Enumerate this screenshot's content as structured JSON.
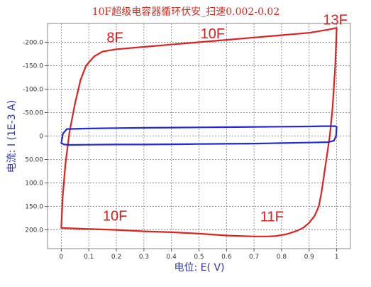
{
  "chart_data": {
    "type": "line",
    "title": "10F超级电容器循环伏安_扫速0.002-0.02",
    "xlabel": "电位: E( V)",
    "ylabel": "电流: I (1E-3 A)",
    "xlim": [
      -0.05,
      1.05
    ],
    "ylim": [
      -240,
      240
    ],
    "y_inverted": true,
    "grid": true,
    "x_ticks": [
      0,
      0.1,
      0.2,
      0.3,
      0.4,
      0.5,
      0.6,
      0.7,
      0.8,
      0.9,
      1
    ],
    "x_tick_labels": [
      "0",
      "0.1",
      "0.2",
      "0.3",
      "0.4",
      "0.5",
      "0.6",
      "0.7",
      "0.8",
      "0.9",
      "1"
    ],
    "y_ticks": [
      -200,
      -150,
      -100,
      -50,
      0,
      50,
      100,
      150,
      200
    ],
    "y_tick_labels": [
      "-200.0",
      "-150.0",
      "-100.0",
      "-50.00",
      "0",
      "50.00",
      "100.0",
      "150.0",
      "200.0"
    ],
    "series": [
      {
        "color": "#dd2222",
        "x": [
          0.0,
          0.005,
          0.015,
          0.03,
          0.05,
          0.07,
          0.09,
          0.12,
          0.15,
          0.2,
          0.3,
          0.4,
          0.5,
          0.6,
          0.7,
          0.8,
          0.9,
          0.95,
          0.98,
          0.995,
          1.0,
          0.995,
          0.985,
          0.975,
          0.965,
          0.955,
          0.945,
          0.935,
          0.92,
          0.9,
          0.88,
          0.86,
          0.84,
          0.82,
          0.8,
          0.78,
          0.75,
          0.72,
          0.7,
          0.6,
          0.5,
          0.4,
          0.3,
          0.2,
          0.1,
          0.05,
          0.0
        ],
        "y": [
          195,
          130,
          60,
          -10,
          -70,
          -120,
          -150,
          -170,
          -180,
          -185,
          -190,
          -195,
          -200,
          -205,
          -210,
          -215,
          -220,
          -225,
          -228,
          -230,
          -230,
          -150,
          -60,
          0,
          40,
          80,
          120,
          150,
          170,
          185,
          195,
          201,
          205,
          209,
          211,
          213,
          214,
          214,
          214,
          212,
          208,
          205,
          203,
          200,
          198,
          197,
          196
        ]
      },
      {
        "color": "#1f2ad4",
        "x": [
          0.0,
          0.002,
          0.006,
          0.02,
          0.1,
          0.2,
          0.3,
          0.4,
          0.5,
          0.6,
          0.7,
          0.8,
          0.9,
          0.95,
          0.98,
          0.995,
          1.0,
          0.998,
          0.99,
          0.97,
          0.9,
          0.8,
          0.7,
          0.6,
          0.5,
          0.4,
          0.3,
          0.2,
          0.1,
          0.03,
          0.01,
          0.0
        ],
        "y": [
          15,
          8,
          -5,
          -15,
          -16,
          -17,
          -17.5,
          -18,
          -18.5,
          -19,
          -19.5,
          -20,
          -20.5,
          -21,
          -21,
          -21,
          -20,
          0,
          10,
          13,
          14,
          15,
          16,
          16.5,
          17,
          17.5,
          18,
          18,
          18.5,
          19,
          18,
          15
        ]
      }
    ],
    "annotations": [
      {
        "text": "13F",
        "x": 0.995,
        "y": -238
      },
      {
        "text": "8F",
        "x": 0.195,
        "y": -200
      },
      {
        "text": "10F",
        "x": 0.55,
        "y": -208
      },
      {
        "text": "10F",
        "x": 0.195,
        "y": 180
      },
      {
        "text": "11F",
        "x": 0.765,
        "y": 182
      }
    ]
  }
}
